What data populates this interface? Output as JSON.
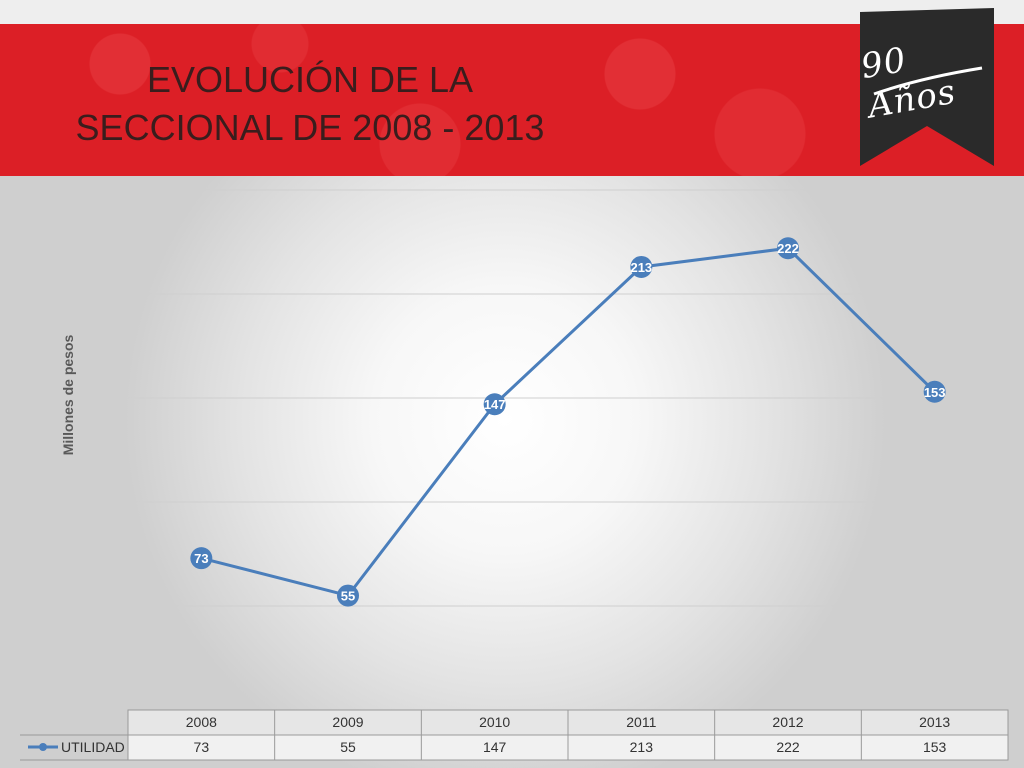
{
  "slide": {
    "title": "EVOLUCIÓN DE LA\nSECCIONAL DE 2008 - 2013",
    "logo_text": "90 Años"
  },
  "colors": {
    "banner": "#dc1f26",
    "series": "#4a7ebb",
    "title_text": "#3a1d1d",
    "logo_bg": "#2a2a2a"
  },
  "chart_data": {
    "type": "line",
    "title": "",
    "xlabel": "",
    "ylabel": "Millones de pesos",
    "categories": [
      "2008",
      "2009",
      "2010",
      "2011",
      "2012",
      "2013"
    ],
    "series": [
      {
        "name": "UTILIDAD",
        "values": [
          73,
          55,
          147,
          213,
          222,
          153
        ]
      }
    ],
    "ylim": [
      0,
      250
    ],
    "grid": true,
    "data_labels": true,
    "data_table": true
  }
}
